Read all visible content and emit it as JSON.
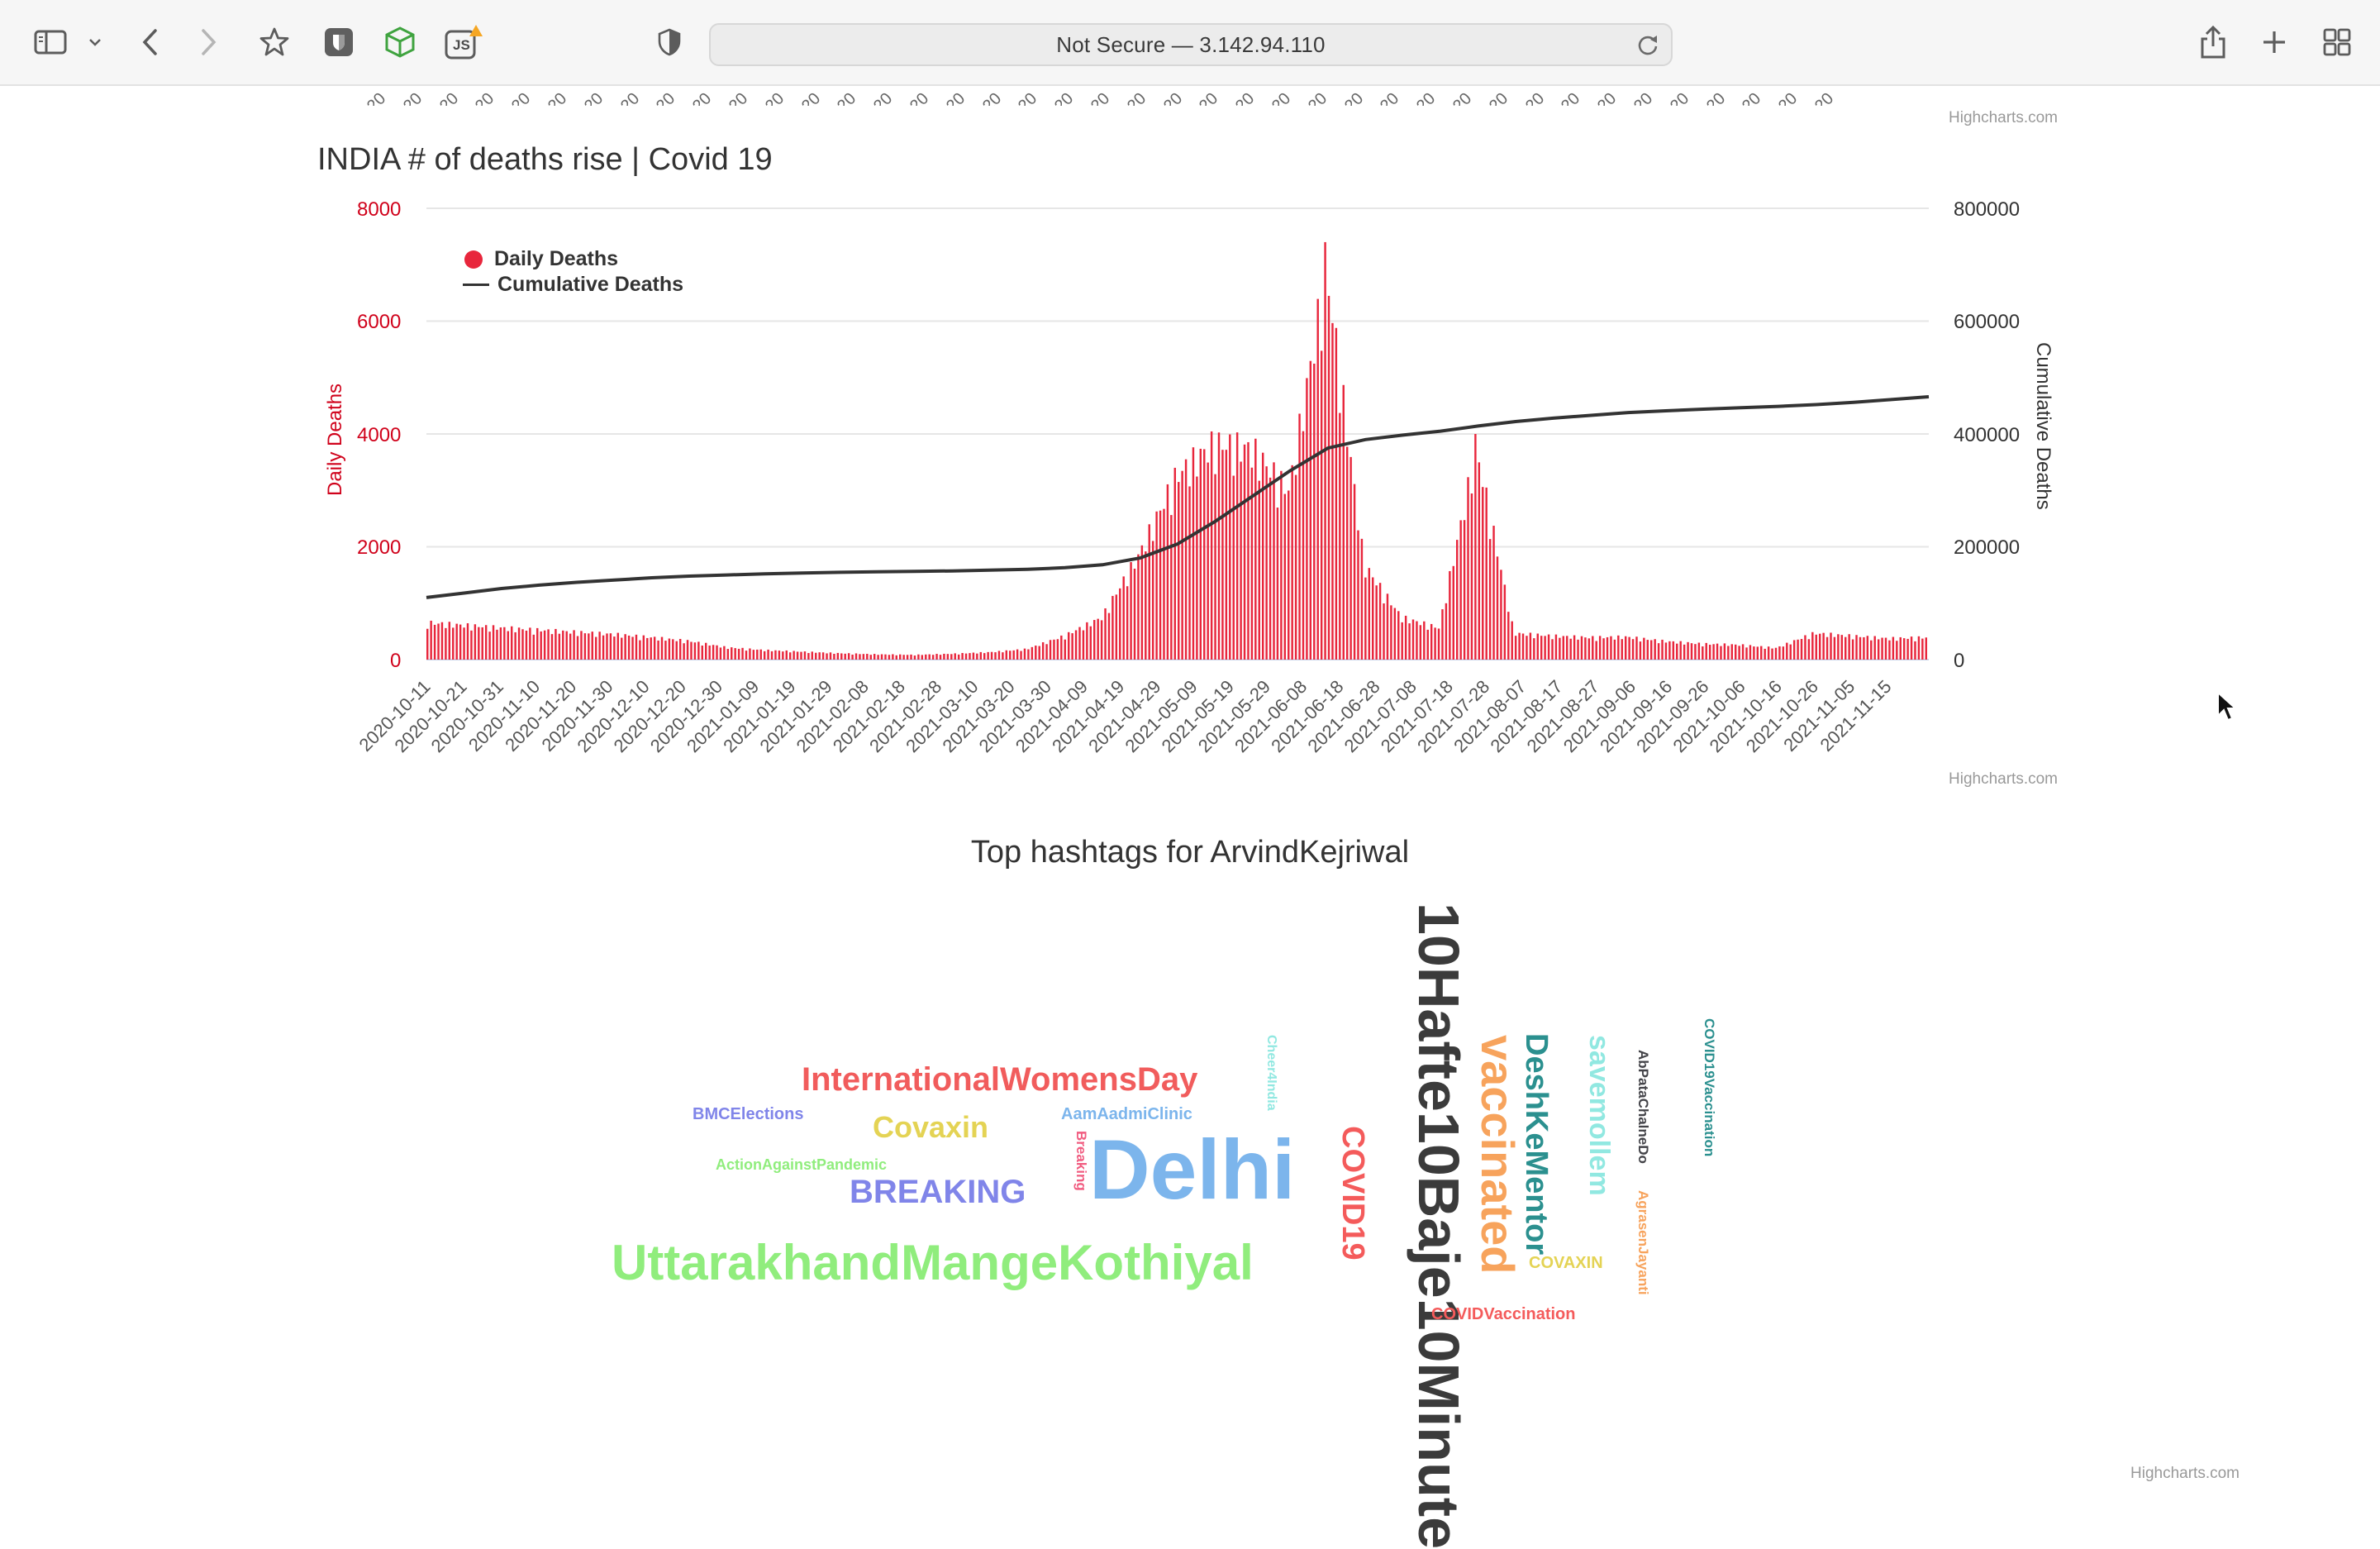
{
  "browser": {
    "url_text": "Not Secure — 3.142.94.110",
    "icons": [
      "sidebar-icon",
      "chevron-down-icon",
      "back-icon",
      "forward-icon",
      "bookmark-star-icon",
      "extension-shield-icon",
      "extension-cube-icon",
      "extension-js-icon",
      "privacy-shield-icon",
      "reload-icon",
      "share-icon",
      "new-tab-icon",
      "tab-overview-icon"
    ],
    "js_badge": "JS"
  },
  "prev_chart": {
    "credit": "Highcharts.com",
    "partial_labels": [
      "20",
      "20",
      "20",
      "20",
      "20",
      "20",
      "20",
      "20",
      "20",
      "20",
      "20",
      "20",
      "20",
      "20",
      "20",
      "20",
      "20",
      "20",
      "20",
      "20",
      "20",
      "20",
      "20",
      "20",
      "20",
      "20",
      "20",
      "20",
      "20",
      "20",
      "20",
      "20",
      "20",
      "20",
      "20",
      "20",
      "20",
      "20",
      "20",
      "20",
      "20",
      "20",
      "20",
      "20",
      "20",
      "20",
      "20",
      "20",
      "20",
      "20"
    ]
  },
  "deaths_chart": {
    "title": "INDIA # of deaths rise | Covid 19",
    "credit": "Highcharts.com",
    "legend": [
      "Daily Deaths",
      "Cumulative Deaths"
    ],
    "left_axis_title": "Daily Deaths",
    "right_axis_title": "Cumulative Deaths",
    "left_ticks": [
      "8000",
      "6000",
      "4000",
      "2000",
      "0"
    ],
    "right_ticks": [
      "800000",
      "600000",
      "400000",
      "200000",
      "0"
    ],
    "colors": {
      "daily": "#e8263c",
      "cumulative": "#333333",
      "left_axis": "#d0021b"
    }
  },
  "chart_data": {
    "type": "bar",
    "x_start": "2020-10-11",
    "x_end": "2021-11-24",
    "categories": [
      "2020-10-11",
      "2020-10-21",
      "2020-10-31",
      "2020-11-10",
      "2020-11-20",
      "2020-11-30",
      "2020-12-10",
      "2020-12-20",
      "2020-12-30",
      "2021-01-09",
      "2021-01-19",
      "2021-01-29",
      "2021-02-08",
      "2021-02-18",
      "2021-02-28",
      "2021-03-10",
      "2021-03-20",
      "2021-03-30",
      "2021-04-09",
      "2021-04-19",
      "2021-04-29",
      "2021-05-09",
      "2021-05-19",
      "2021-05-29",
      "2021-06-08",
      "2021-06-18",
      "2021-06-28",
      "2021-07-08",
      "2021-07-18",
      "2021-07-28",
      "2021-08-07",
      "2021-08-17",
      "2021-08-27",
      "2021-09-06",
      "2021-09-16",
      "2021-09-26",
      "2021-10-06",
      "2021-10-16",
      "2021-10-26",
      "2021-11-05",
      "2021-11-15"
    ],
    "series": [
      {
        "name": "Daily Deaths",
        "type": "column",
        "axis": "left",
        "values": [
          700,
          650,
          600,
          560,
          520,
          480,
          420,
          350,
          230,
          180,
          150,
          120,
          100,
          90,
          110,
          140,
          200,
          450,
          800,
          2000,
          3500,
          4100,
          4000,
          3200,
          7400,
          1800,
          800,
          600,
          4000,
          500,
          450,
          420,
          430,
          350,
          300,
          280,
          220,
          500,
          450,
          400,
          420
        ]
      },
      {
        "name": "Cumulative Deaths",
        "type": "line",
        "axis": "right",
        "values": [
          110000,
          118000,
          126000,
          132000,
          137000,
          141000,
          145000,
          148000,
          150000,
          152000,
          153500,
          154700,
          155600,
          156300,
          157200,
          158500,
          160000,
          163000,
          168000,
          180000,
          205000,
          245000,
          290000,
          335000,
          375000,
          390000,
          398000,
          405000,
          414000,
          422000,
          428000,
          433000,
          438000,
          441000,
          444000,
          446500,
          449000,
          452000,
          456000,
          461000,
          466000
        ]
      }
    ],
    "ylim_left": [
      0,
      8000
    ],
    "ylim_right": [
      0,
      800000
    ],
    "grid": true,
    "legend_position": "top-left"
  },
  "wordcloud": {
    "title": "Top hashtags for ArvindKejriwal",
    "credit": "Highcharts.com",
    "words": [
      {
        "text": "10Hafte10Baje10Minute",
        "color": "#3b3b3b",
        "weight": "largest"
      },
      {
        "text": "Delhi",
        "color": "#7cb5ec",
        "weight": "large"
      },
      {
        "text": "UttarakhandMangeKothiyal",
        "color": "#90ed7d",
        "weight": "large"
      },
      {
        "text": "vaccinated",
        "color": "#f7a35c",
        "weight": "large"
      },
      {
        "text": "InternationalWomensDay",
        "color": "#f15c5c",
        "weight": "medium"
      },
      {
        "text": "DeshKeMentor",
        "color": "#2b908f",
        "weight": "medium"
      },
      {
        "text": "savemollem",
        "color": "#91e8e1",
        "weight": "medium"
      },
      {
        "text": "COVID19",
        "color": "#f45b5b",
        "weight": "medium"
      },
      {
        "text": "BREAKING",
        "color": "#8085e9",
        "weight": "medium"
      },
      {
        "text": "Covaxin",
        "color": "#e4d354",
        "weight": "medium"
      },
      {
        "text": "AbPataChalneDo",
        "color": "#434348",
        "weight": "small"
      },
      {
        "text": "AgrasenJayanti",
        "color": "#f7a35c",
        "weight": "small"
      },
      {
        "text": "COVID19Vaccination",
        "color": "#2b908f",
        "weight": "small"
      },
      {
        "text": "COVIDVaccination",
        "color": "#f45b5b",
        "weight": "small"
      },
      {
        "text": "COVAXIN",
        "color": "#e4d354",
        "weight": "small"
      },
      {
        "text": "AamAadmiClinic",
        "color": "#7cb5ec",
        "weight": "small"
      },
      {
        "text": "BMCElections",
        "color": "#8085e9",
        "weight": "small"
      },
      {
        "text": "ActionAgainstPandemic",
        "color": "#90ed7d",
        "weight": "small"
      },
      {
        "text": "Cheer4India",
        "color": "#91e8e1",
        "weight": "small"
      },
      {
        "text": "Breaking",
        "color": "#f15c80",
        "weight": "small"
      }
    ]
  }
}
